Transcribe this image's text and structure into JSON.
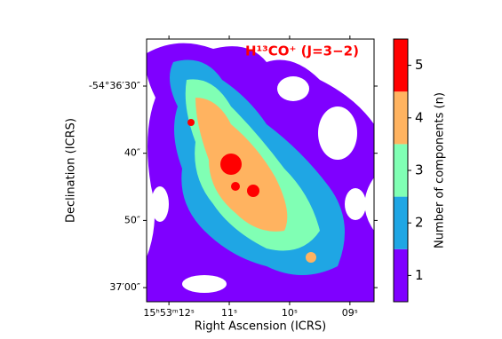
{
  "chart_data": {
    "type": "map",
    "title": "H¹³CO⁺ (J=3−2)",
    "x_label": "Right Ascension (ICRS)",
    "y_label": "Declination (ICRS)",
    "xlim": [
      12.37,
      8.6
    ],
    "xticks": [
      {
        "value": 12,
        "label": "15ʰ53ᵐ12ˢ"
      },
      {
        "value": 11,
        "label": "11ˢ"
      },
      {
        "value": 10,
        "label": "10ˢ"
      },
      {
        "value": 9,
        "label": "09ˢ"
      }
    ],
    "ylim": [
      23.0,
      62.1
    ],
    "yticks": [
      {
        "value": 30,
        "label": "-54°36′30″"
      },
      {
        "value": 40,
        "label": "40″"
      },
      {
        "value": 50,
        "label": "50″"
      },
      {
        "value": 60,
        "label": "37′00″"
      }
    ],
    "colorbar": {
      "label": "Number of components (n)",
      "lim": [
        0.5,
        5.5
      ],
      "ticks": [
        1,
        2,
        3,
        4,
        5
      ],
      "colors": [
        "#7f00ff",
        "#1fa6e4",
        "#80ffb4",
        "#ffb360",
        "#ff0000"
      ]
    }
  }
}
